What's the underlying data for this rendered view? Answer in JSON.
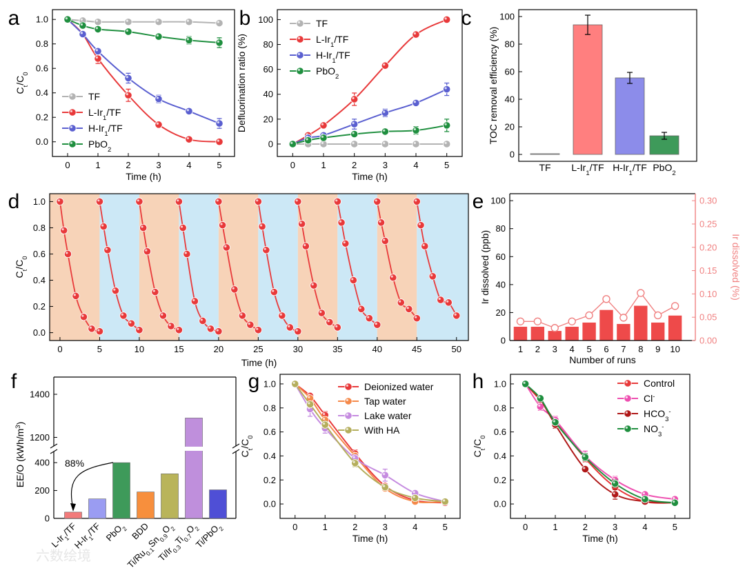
{
  "panels": {
    "a": "a",
    "b": "b",
    "c": "c",
    "d": "d",
    "e": "e",
    "f": "f",
    "g": "g",
    "h": "h"
  },
  "watermark": "六数绘境",
  "colors": {
    "TF": "#b3b3b3",
    "L": "#e8393a",
    "H": "#5a5fd0",
    "PbO2": "#1f8f3f",
    "orange": "#f7d3b8",
    "blue": "#cce8f6",
    "pink": "#f08080",
    "barRed": "#ff7f7f",
    "barBlue": "#8c8cea",
    "barGreen": "#3e9a5a"
  },
  "chart_data": [
    {
      "panel": "a",
      "type": "line",
      "xlabel": "Time (h)",
      "ylabel": "Ct/C0",
      "xlim": [
        -0.5,
        5.5
      ],
      "ylim": [
        -0.12,
        1.08
      ],
      "xticks": [
        0,
        1,
        2,
        3,
        4,
        5
      ],
      "yticks": [
        0.0,
        0.2,
        0.4,
        0.6,
        0.8,
        1.0
      ],
      "series": [
        {
          "name": "TF",
          "key": "TF",
          "x": [
            0,
            0.5,
            1,
            2,
            3,
            4,
            5
          ],
          "y": [
            1.0,
            0.99,
            0.98,
            0.98,
            0.98,
            0.98,
            0.97
          ],
          "err": [
            0,
            0,
            0,
            0,
            0,
            0,
            0
          ]
        },
        {
          "name": "L-Ir1/TF",
          "key": "L",
          "x": [
            0,
            0.5,
            1,
            2,
            3,
            4,
            5
          ],
          "y": [
            1.0,
            0.88,
            0.68,
            0.38,
            0.14,
            0.02,
            0.0
          ],
          "err": [
            0,
            0,
            0.04,
            0.05,
            0.02,
            0.01,
            0.01
          ]
        },
        {
          "name": "H-Ir1/TF",
          "key": "H",
          "x": [
            0,
            0.5,
            1,
            2,
            3,
            4,
            5
          ],
          "y": [
            1.0,
            0.88,
            0.74,
            0.52,
            0.35,
            0.25,
            0.15
          ],
          "err": [
            0,
            0,
            0.02,
            0.04,
            0.03,
            0.02,
            0.04
          ]
        },
        {
          "name": "PbO2",
          "key": "PbO2",
          "x": [
            0,
            0.5,
            1,
            2,
            3,
            4,
            5
          ],
          "y": [
            1.0,
            0.95,
            0.92,
            0.9,
            0.86,
            0.83,
            0.81
          ],
          "err": [
            0,
            0,
            0,
            0.01,
            0.01,
            0.03,
            0.04
          ]
        }
      ]
    },
    {
      "panel": "b",
      "type": "line",
      "xlabel": "Time (h)",
      "ylabel": "Defluorination ratio (%)",
      "xlim": [
        -0.5,
        5.5
      ],
      "ylim": [
        -10,
        108
      ],
      "xticks": [
        0,
        1,
        2,
        3,
        4,
        5
      ],
      "yticks": [
        0,
        20,
        40,
        60,
        80,
        100
      ],
      "series": [
        {
          "name": "TF",
          "key": "TF",
          "x": [
            0,
            0.5,
            1,
            2,
            3,
            4,
            5
          ],
          "y": [
            0,
            0,
            0,
            0,
            0,
            0,
            0
          ],
          "err": [
            0,
            0,
            0,
            0,
            0,
            0,
            0
          ]
        },
        {
          "name": "L-Ir1/TF",
          "key": "L",
          "x": [
            0,
            0.5,
            1,
            2,
            3,
            4,
            5
          ],
          "y": [
            0,
            7,
            15,
            36,
            63,
            88,
            100
          ],
          "err": [
            0,
            0,
            2,
            5,
            2,
            1,
            1
          ]
        },
        {
          "name": "H-Ir1/TF",
          "key": "H",
          "x": [
            0,
            0.5,
            1,
            2,
            3,
            4,
            5
          ],
          "y": [
            0,
            5,
            7,
            16,
            25,
            33,
            44
          ],
          "err": [
            0,
            0,
            2,
            4,
            3,
            2,
            5
          ]
        },
        {
          "name": "PbO2",
          "key": "PbO2",
          "x": [
            0,
            0.5,
            1,
            2,
            3,
            4,
            5
          ],
          "y": [
            0,
            3,
            5,
            8,
            10,
            11,
            15
          ],
          "err": [
            0,
            0,
            1,
            2,
            2,
            3,
            5
          ]
        }
      ]
    },
    {
      "panel": "c",
      "type": "bar",
      "ylabel": "TOC removal efficiency (%)",
      "ylim": [
        -5,
        105
      ],
      "yticks": [
        0,
        20,
        40,
        60,
        80,
        100
      ],
      "categories": [
        "TF",
        "L-Ir1/TF",
        "H-Ir1/TF",
        "PbO2"
      ],
      "values": [
        0.5,
        94,
        55.5,
        13.5
      ],
      "err": [
        0,
        7,
        4,
        2.5
      ],
      "keys": [
        "TF",
        "barRed",
        "barBlue",
        "barGreen"
      ]
    },
    {
      "panel": "d",
      "type": "line",
      "xlabel": "Time (h)",
      "ylabel": "Ct/C0",
      "xlim": [
        -1.3,
        51.5
      ],
      "ylim": [
        -0.06,
        1.06
      ],
      "xticks": [
        0,
        5,
        10,
        15,
        20,
        25,
        30,
        35,
        40,
        45,
        50
      ],
      "yticks": [
        0.0,
        0.2,
        0.4,
        0.6,
        0.8,
        1.0
      ],
      "cycle_x": [
        0,
        0.5,
        1,
        2,
        3,
        4,
        5
      ],
      "cycles": [
        [
          1.0,
          0.78,
          0.6,
          0.28,
          0.12,
          0.03,
          0.01
        ],
        [
          1.0,
          0.81,
          0.63,
          0.32,
          0.13,
          0.07,
          0.02
        ],
        [
          1.0,
          0.8,
          0.62,
          0.31,
          0.13,
          0.05,
          0.02
        ],
        [
          1.0,
          0.8,
          0.6,
          0.24,
          0.09,
          0.03,
          0.01
        ],
        [
          1.0,
          0.82,
          0.65,
          0.33,
          0.13,
          0.06,
          0.02
        ],
        [
          1.0,
          0.81,
          0.63,
          0.31,
          0.13,
          0.04,
          0.01
        ],
        [
          1.0,
          0.83,
          0.66,
          0.36,
          0.15,
          0.08,
          0.04
        ],
        [
          1.0,
          0.84,
          0.68,
          0.4,
          0.18,
          0.11,
          0.06
        ],
        [
          1.0,
          0.84,
          0.7,
          0.42,
          0.23,
          0.18,
          0.11
        ],
        [
          1.0,
          0.82,
          0.66,
          0.43,
          0.25,
          0.23,
          0.13
        ]
      ]
    },
    {
      "panel": "e",
      "type": "bar",
      "xlabel": "Number of runs",
      "ylabel": "Ir dissolved (ppb)",
      "ylabel2": "Ir dissolved (%)",
      "ylim": [
        0,
        105
      ],
      "yticks": [
        0,
        20,
        40,
        60,
        80,
        100
      ],
      "ylim2": [
        0,
        0.315
      ],
      "yticks2": [
        0.0,
        0.05,
        0.1,
        0.15,
        0.2,
        0.25,
        0.3
      ],
      "categories": [
        "1",
        "2",
        "3",
        "4",
        "5",
        "6",
        "7",
        "8",
        "9",
        "10"
      ],
      "values": [
        10,
        10,
        7,
        10,
        13,
        22,
        12,
        25,
        13,
        18
      ],
      "percent": [
        0.041,
        0.041,
        0.027,
        0.041,
        0.054,
        0.089,
        0.049,
        0.102,
        0.054,
        0.074
      ]
    },
    {
      "panel": "f",
      "type": "bar",
      "ylabel": "EE/O (kWh/m3)",
      "categories": [
        "L-Ir1/TF",
        "H-Ir1/TF",
        "PbO2",
        "BDD",
        "Ti/Ru0.1Sn0.9O2",
        "Ti/Ir0.3Ti0.7O2",
        "Ti/PbO2"
      ],
      "values": [
        45,
        140,
        400,
        190,
        320,
        1290,
        205
      ],
      "keys": [
        "#f27b7b",
        "#9a9cf2",
        "#3e9a5a",
        "#f78f3d",
        "#b9b45a",
        "#bf8fdc",
        "#4f4fd6"
      ],
      "yticks_low": [
        0,
        200,
        400
      ],
      "yticks_high": [
        1200,
        1400
      ],
      "annotation": "88%"
    },
    {
      "panel": "g",
      "type": "line",
      "xlabel": "Time (h)",
      "ylabel": "Ct/C0",
      "xlim": [
        -0.5,
        5.5
      ],
      "ylim": [
        -0.12,
        1.08
      ],
      "xticks": [
        0,
        1,
        2,
        3,
        4,
        5
      ],
      "yticks": [
        0.0,
        0.2,
        0.4,
        0.6,
        0.8,
        1.0
      ],
      "series": [
        {
          "name": "Deionized water",
          "color": "#e8393a",
          "x": [
            0,
            0.5,
            1,
            2,
            3,
            4,
            5
          ],
          "y": [
            1.0,
            0.9,
            0.74,
            0.42,
            0.15,
            0.03,
            0.01
          ],
          "err": [
            0,
            0.02,
            0.03,
            0.03,
            0.02,
            0.01,
            0.01
          ]
        },
        {
          "name": "Tap water",
          "color": "#f5894a",
          "x": [
            0,
            0.5,
            1,
            2,
            3,
            4,
            5
          ],
          "y": [
            1.0,
            0.88,
            0.7,
            0.4,
            0.13,
            0.02,
            0.02
          ],
          "err": [
            0,
            0.02,
            0.03,
            0.03,
            0.02,
            0.01,
            0.01
          ]
        },
        {
          "name": "Lake water",
          "color": "#c58be0",
          "x": [
            0,
            0.5,
            1,
            2,
            3,
            4,
            5
          ],
          "y": [
            1.0,
            0.79,
            0.63,
            0.38,
            0.24,
            0.09,
            0.02
          ],
          "err": [
            0,
            0.06,
            0.04,
            0.03,
            0.05,
            0.02,
            0.01
          ]
        },
        {
          "name": "With HA",
          "color": "#b4ae5c",
          "x": [
            0,
            0.5,
            1,
            2,
            3,
            4,
            5
          ],
          "y": [
            1.0,
            0.83,
            0.66,
            0.34,
            0.14,
            0.05,
            0.02
          ],
          "err": [
            0,
            0.02,
            0.03,
            0.03,
            0.02,
            0.01,
            0.01
          ]
        }
      ]
    },
    {
      "panel": "h",
      "type": "line",
      "xlabel": "Time (h)",
      "ylabel": "Ct/C0",
      "xlim": [
        -0.5,
        5.5
      ],
      "ylim": [
        -0.12,
        1.08
      ],
      "xticks": [
        0,
        1,
        2,
        3,
        4,
        5
      ],
      "yticks": [
        0.0,
        0.2,
        0.4,
        0.6,
        0.8,
        1.0
      ],
      "series": [
        {
          "name": "Control",
          "color": "#e8393a",
          "x": [
            0,
            0.5,
            1,
            2,
            3,
            4,
            5
          ],
          "y": [
            1.0,
            0.86,
            0.69,
            0.38,
            0.14,
            0.02,
            0.01
          ],
          "err": [
            0,
            0.02,
            0.02,
            0.03,
            0.02,
            0.01,
            0.01
          ]
        },
        {
          "name": "Cl-",
          "color": "#ee4fb0",
          "x": [
            0,
            0.5,
            1,
            2,
            3,
            4,
            5
          ],
          "y": [
            1.0,
            0.81,
            0.7,
            0.4,
            0.2,
            0.08,
            0.04
          ],
          "err": [
            0,
            0.03,
            0.03,
            0.04,
            0.03,
            0.02,
            0.02
          ]
        },
        {
          "name": "HCO3-",
          "color": "#b01818",
          "x": [
            0,
            0.5,
            1,
            2,
            3,
            4,
            5
          ],
          "y": [
            1.0,
            0.87,
            0.66,
            0.29,
            0.08,
            0.02,
            0.01
          ],
          "err": [
            0,
            0.02,
            0.03,
            0.02,
            0.04,
            0.01,
            0.01
          ]
        },
        {
          "name": "NO3-",
          "color": "#1f8f3f",
          "x": [
            0,
            0.5,
            1,
            2,
            3,
            4,
            5
          ],
          "y": [
            1.0,
            0.88,
            0.68,
            0.39,
            0.17,
            0.04,
            0.01
          ],
          "err": [
            0,
            0.02,
            0.02,
            0.03,
            0.03,
            0.02,
            0.01
          ]
        }
      ]
    }
  ]
}
